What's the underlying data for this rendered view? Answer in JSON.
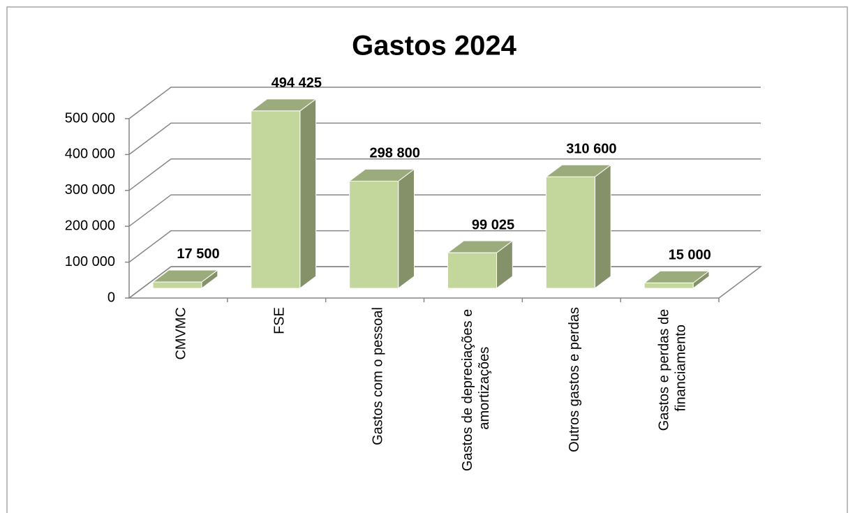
{
  "chart_data": {
    "type": "bar3d",
    "title": "Gastos 2024",
    "categories": [
      "CMVMC",
      "FSE",
      "Gastos com o pessoal",
      "Gastos de depreciações e amortizações",
      "Outros gastos e perdas",
      "Gastos e perdas de financiamento"
    ],
    "values": [
      17500,
      494425,
      298800,
      99025,
      310600,
      15000
    ],
    "value_labels": [
      "17 500",
      "494 425",
      "298 800",
      "99 025",
      "310 600",
      "15 000"
    ],
    "color": "#c3d69b",
    "ylim": [
      0,
      500000
    ],
    "yticks": [
      0,
      {
        "value": 100000,
        "label": "100 000"
      },
      {
        "value": 200000,
        "label": "200 000"
      },
      {
        "value": 300000,
        "label": "300 000"
      },
      {
        "value": 400000,
        "label": "400 000"
      },
      {
        "value": 500000,
        "label": "500 000"
      }
    ],
    "grid": true
  }
}
